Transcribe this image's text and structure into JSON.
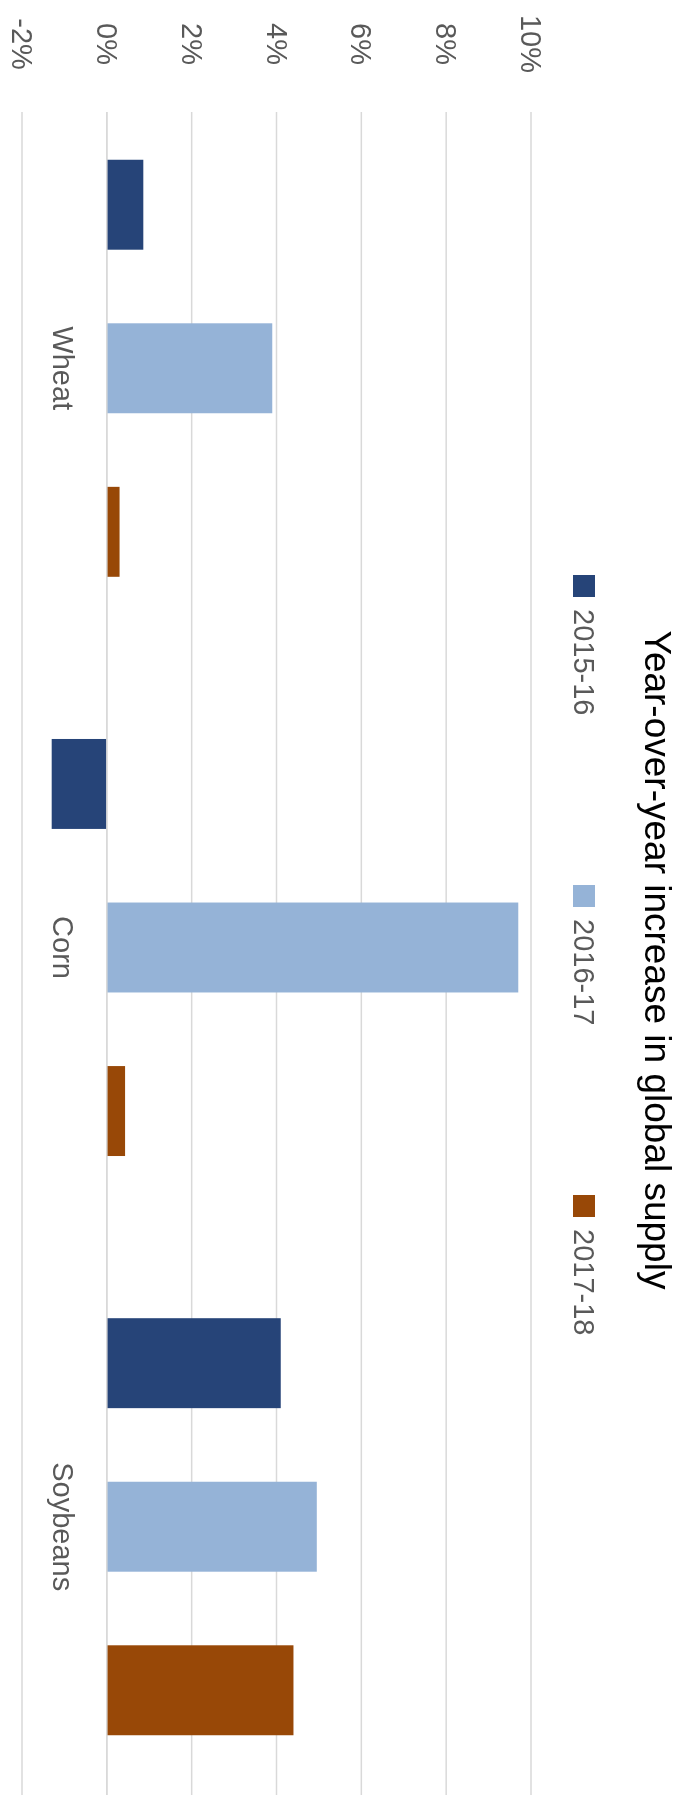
{
  "chart_data": {
    "type": "bar",
    "orientation": "horizontal",
    "title": "Year-over-year increase in global supply",
    "categories": [
      "Wheat",
      "Corn",
      "Soybeans"
    ],
    "series": [
      {
        "name": "2015-16",
        "color": "#264478",
        "values": [
          0.86,
          -1.3,
          4.1
        ]
      },
      {
        "name": "2016-17",
        "color": "#95b3d7",
        "values": [
          3.9,
          9.7,
          4.95
        ]
      },
      {
        "name": "2017-18",
        "color": "#984807",
        "values": [
          0.3,
          0.43,
          4.4
        ]
      }
    ],
    "xlim": [
      -2,
      10
    ],
    "xticks": [
      {
        "value": -2,
        "label": "-2%"
      },
      {
        "value": 0,
        "label": "0%"
      },
      {
        "value": 2,
        "label": "2%"
      },
      {
        "value": 4,
        "label": "4%"
      },
      {
        "value": 6,
        "label": "6%"
      },
      {
        "value": 8,
        "label": "8%"
      },
      {
        "value": 10,
        "label": "10%"
      }
    ],
    "grid": "x",
    "legend": "right"
  }
}
